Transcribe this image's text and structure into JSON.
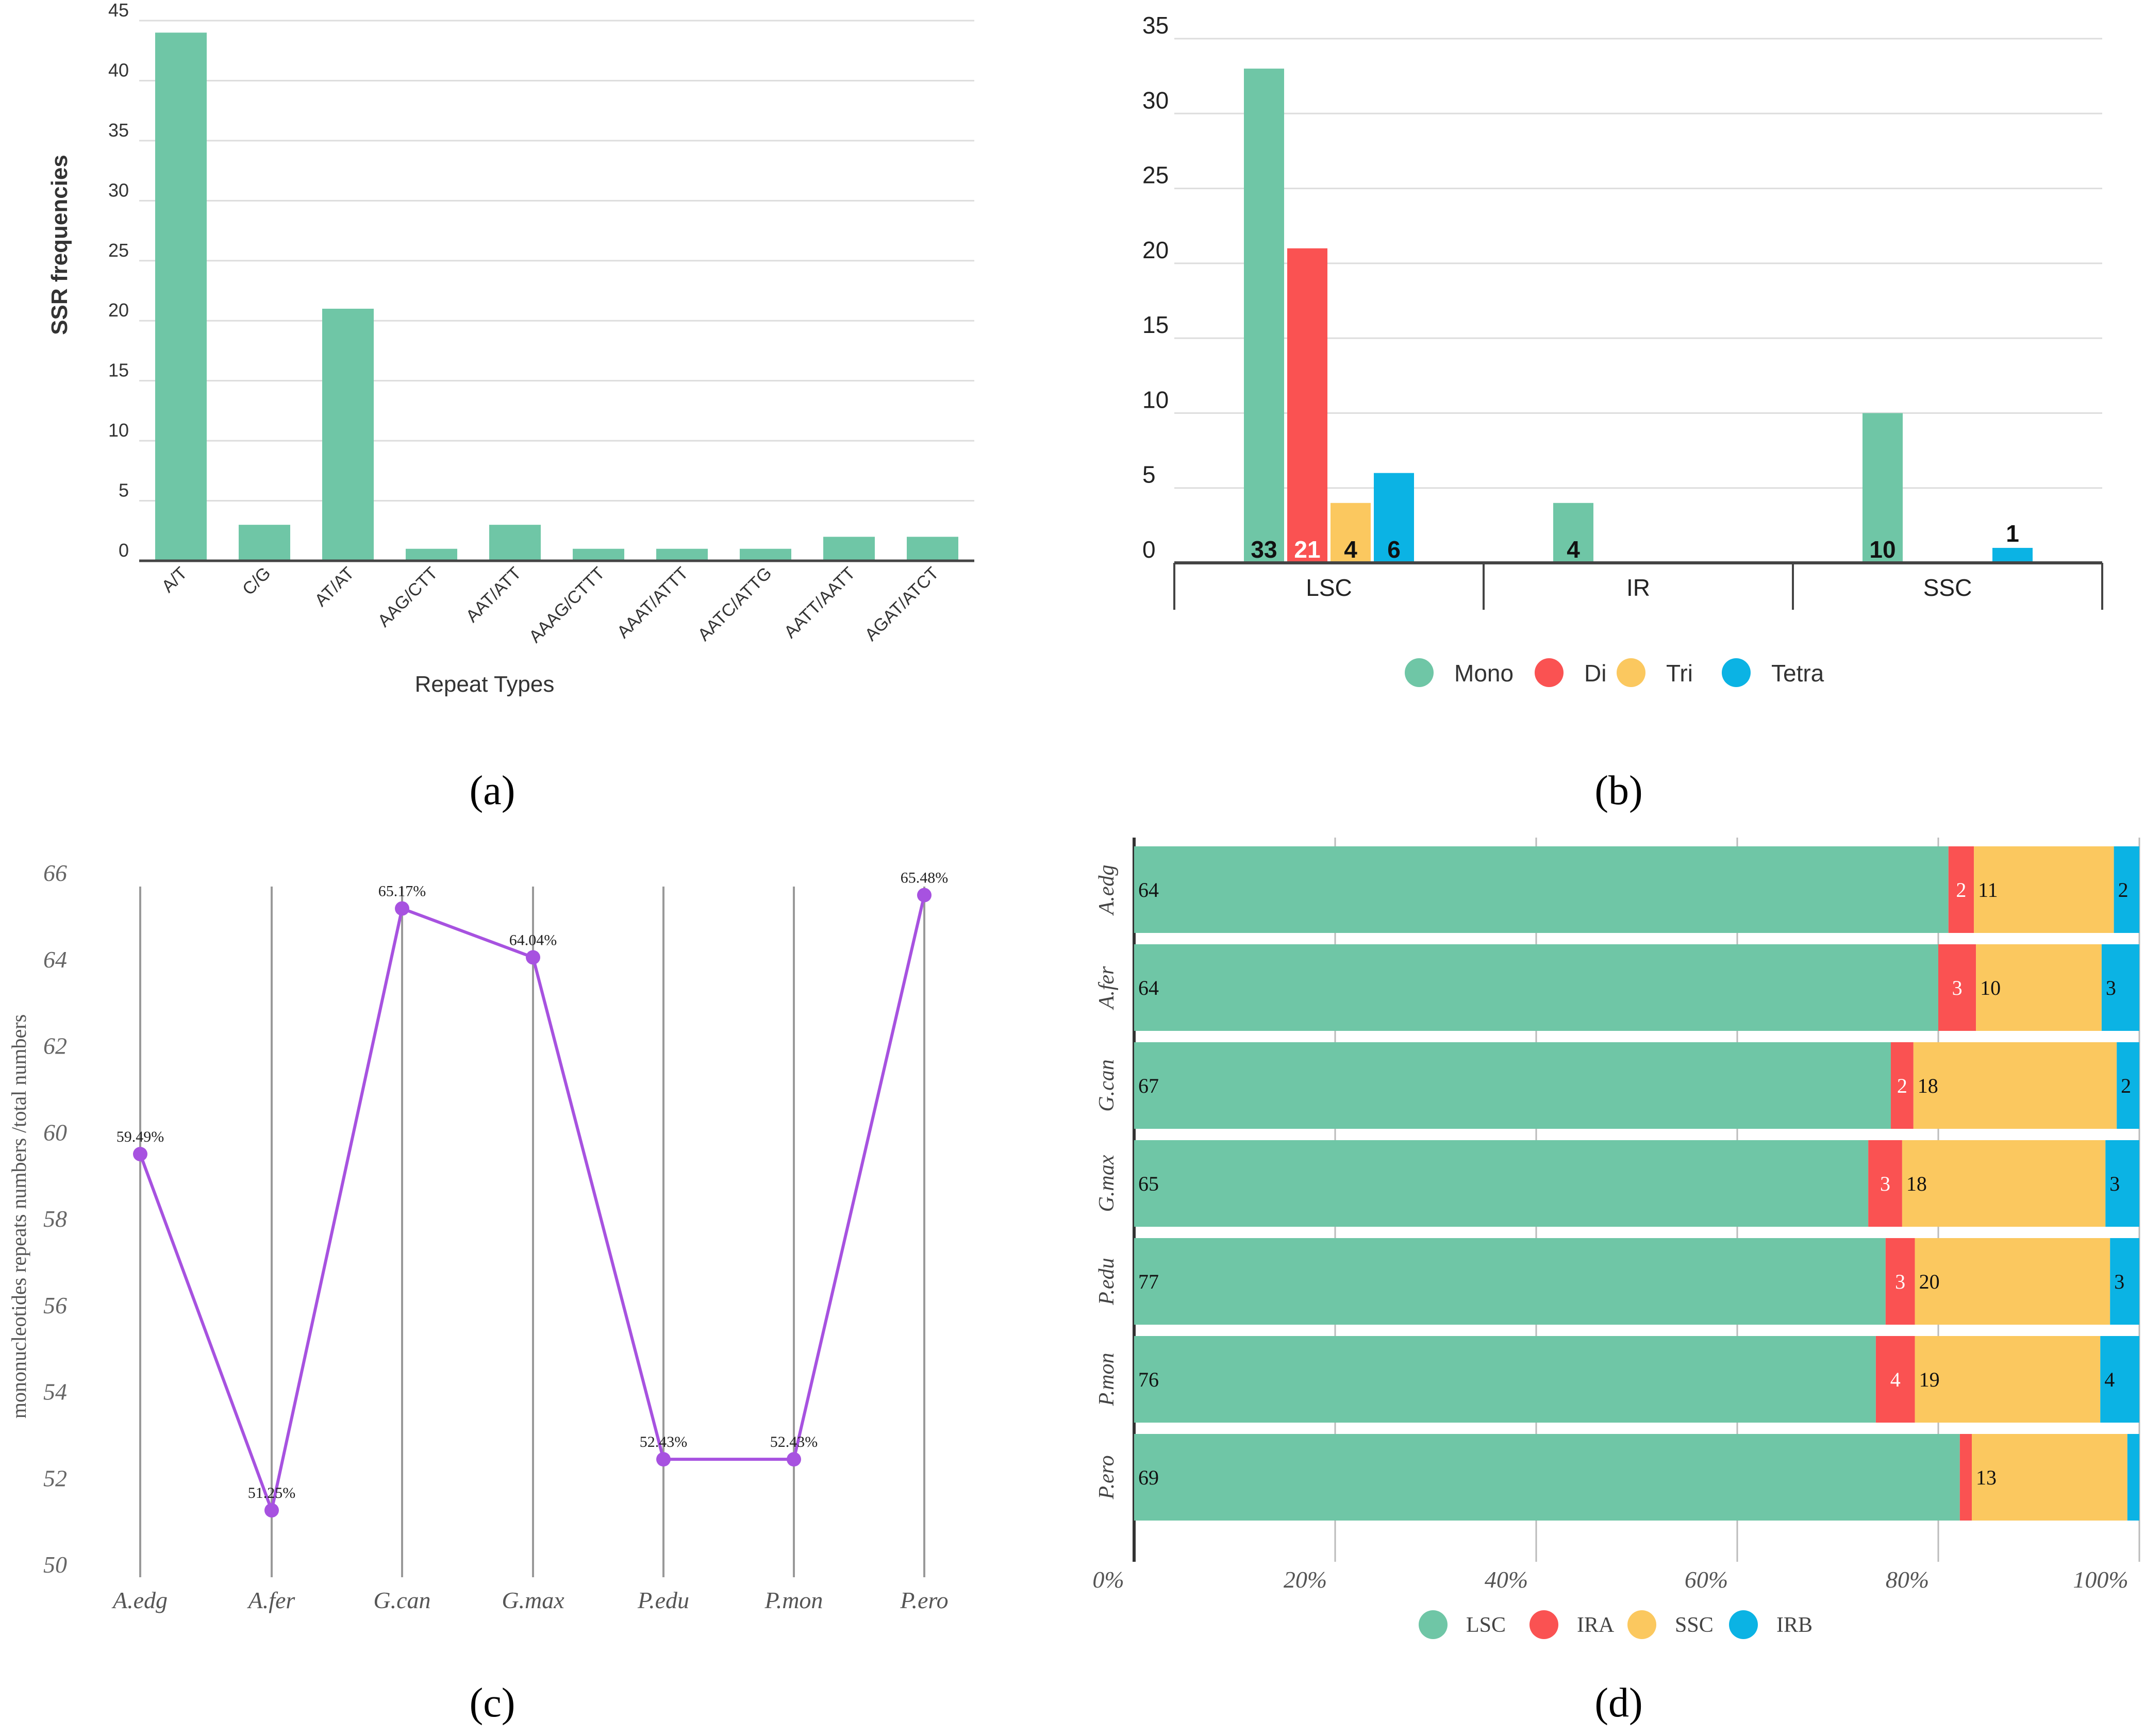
{
  "colors": {
    "green": "#6fc6a6",
    "red": "#fa5252",
    "yellow": "#fbc85f",
    "blue": "#0bb3e4",
    "purple": "#a752e0",
    "grid": "#dddddd",
    "axis": "#444444"
  },
  "panel_labels": [
    "(a)",
    "(b)",
    "(c)",
    "(d)"
  ],
  "chart_data": [
    {
      "id": "a",
      "type": "bar",
      "title": "",
      "xlabel": "Repeat Types",
      "ylabel": "SSR frequencies",
      "ylim": [
        0,
        45
      ],
      "yticks": [
        "0",
        "5",
        "10",
        "15",
        "20",
        "25",
        "30",
        "35",
        "40",
        "45"
      ],
      "categories": [
        "A/T",
        "C/G",
        "AT/AT",
        "AAG/CTT",
        "AAT/ATT",
        "AAAG/CTTT",
        "AAAT/ATTT",
        "AATC/ATTG",
        "AATT/AATT",
        "AGAT/ATCT"
      ],
      "values": [
        44,
        3,
        21,
        1,
        3,
        1,
        1,
        1,
        2,
        2
      ]
    },
    {
      "id": "b",
      "type": "bar",
      "title": "",
      "ylim": [
        0,
        35
      ],
      "yticks": [
        "0",
        "5",
        "10",
        "15",
        "20",
        "25",
        "30",
        "35"
      ],
      "categories": [
        "LSC",
        "IR",
        "SSC"
      ],
      "series": [
        {
          "name": "Mono",
          "values": [
            33,
            4,
            10
          ],
          "labels": [
            "33",
            "4",
            "10"
          ]
        },
        {
          "name": "Di",
          "values": [
            21,
            0,
            0
          ],
          "labels": [
            "21",
            "",
            ""
          ]
        },
        {
          "name": "Tri",
          "values": [
            4,
            0,
            0
          ],
          "labels": [
            "4",
            "",
            ""
          ]
        },
        {
          "name": "Tetra",
          "values": [
            6,
            0,
            1
          ],
          "labels": [
            "6",
            "",
            "1"
          ]
        }
      ],
      "legend": "bottom"
    },
    {
      "id": "c",
      "type": "line",
      "title": "",
      "ylabel": "mononucleotides repeats numbers /total numbers",
      "ylim": [
        50,
        66
      ],
      "yticks": [
        "50",
        "52",
        "54",
        "56",
        "58",
        "60",
        "62",
        "64",
        "66"
      ],
      "categories": [
        "A.edg",
        "A.fer",
        "G.can",
        "G.max",
        "P.edu",
        "P.mon",
        "P.ero"
      ],
      "values": [
        59.49,
        51.25,
        65.17,
        64.04,
        52.43,
        52.43,
        65.48
      ],
      "labels": [
        "59.49%",
        "51.25%",
        "65.17%",
        "64.04%",
        "52.43%",
        "52.43%",
        "65.48%"
      ]
    },
    {
      "id": "d",
      "type": "bar",
      "orientation": "horizontal-stacked-percent",
      "title": "",
      "xticks": [
        "0%",
        "20%",
        "40%",
        "60%",
        "80%",
        "100%"
      ],
      "categories": [
        "A.edg",
        "A.fer",
        "G.can",
        "G.max",
        "P.edu",
        "P.mon",
        "P.ero"
      ],
      "series": [
        {
          "name": "LSC",
          "values": [
            64,
            64,
            67,
            65,
            77,
            76,
            69
          ],
          "labels": [
            "64",
            "64",
            "67",
            "65",
            "77",
            "76",
            "69"
          ]
        },
        {
          "name": "IRA",
          "values": [
            2,
            3,
            2,
            3,
            3,
            4,
            1
          ],
          "labels": [
            "2",
            "3",
            "2",
            "3",
            "3",
            "4",
            ""
          ]
        },
        {
          "name": "SSC",
          "values": [
            11,
            10,
            18,
            18,
            20,
            19,
            13
          ],
          "labels": [
            "11",
            "10",
            "18",
            "18",
            "20",
            "19",
            "13"
          ]
        },
        {
          "name": "IRB",
          "values": [
            2,
            3,
            2,
            3,
            3,
            4,
            1
          ],
          "labels": [
            "2",
            "3",
            "2",
            "3",
            "3",
            "4",
            ""
          ]
        }
      ],
      "legend": "bottom"
    }
  ]
}
